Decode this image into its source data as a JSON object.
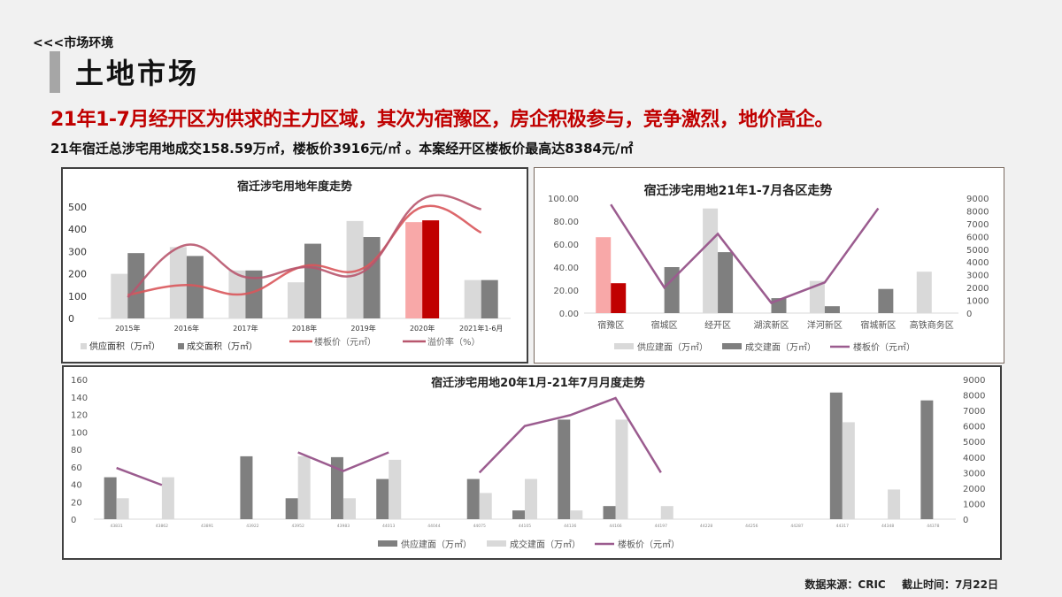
{
  "header": {
    "breadcrumb": "<<<市场环境",
    "title": "土地市场",
    "headline": "21年1-7月经开区为供求的主力区域，其次为宿豫区，房企积极参与，竞争激烈，地价高企。",
    "subline": "21年宿迁总涉宅用地成交158.59万㎡，楼板价3916元/㎡ 。本案经开区楼板价最高达8384元/㎡"
  },
  "footer": {
    "source": "数据来源：CRIC",
    "cutoff": "截止时间：7月22日"
  },
  "colors": {
    "accent_red": "#c00000",
    "accent_pink": "#f8a8a8",
    "supply_gray": "#d9d9d9",
    "deal_gray": "#7f7f7f",
    "price_line_red": "#d9575b",
    "premium_line": "#b8576e",
    "purple_line": "#9b5c8f"
  },
  "chart_data": [
    {
      "type": "bar",
      "title": "宿迁涉宅用地年度走势",
      "categories": [
        "2015年",
        "2016年",
        "2017年",
        "2018年",
        "2019年",
        "2020年",
        "2021年1-6月"
      ],
      "series": [
        {
          "name": "供应面积（万㎡）",
          "kind": "bar",
          "values": [
            200,
            320,
            215,
            162,
            437,
            432,
            172
          ]
        },
        {
          "name": "成交面积（万㎡）",
          "kind": "bar",
          "values": [
            293,
            280,
            215,
            335,
            365,
            440,
            172
          ]
        },
        {
          "name": "楼板价（元㎡）",
          "kind": "smooth-line",
          "values": [
            105,
            150,
            110,
            235,
            225,
            500,
            385
          ]
        },
        {
          "name": "溢价率（%）",
          "kind": "smooth-line",
          "values": [
            95,
            330,
            185,
            230,
            210,
            535,
            490
          ]
        }
      ],
      "highlight_category": "2020年",
      "yticks": [
        "0",
        "100",
        "200",
        "300",
        "400",
        "500"
      ],
      "ylim": [
        0,
        500
      ],
      "legend": [
        "供应面积（万㎡）",
        "成交面积（万㎡）",
        "楼板价（元㎡）",
        "溢价率（%）"
      ],
      "legend_position": "bottom",
      "grid": false
    },
    {
      "type": "bar",
      "title": "宿迁涉宅用地21年1-7月各区走势",
      "categories": [
        "宿豫区",
        "宿城区",
        "经开区",
        "湖滨新区",
        "洋河新区",
        "宿城新区",
        "高铁商务区"
      ],
      "series": [
        {
          "name": "供应建面（万㎡）",
          "kind": "bar",
          "axis": "left",
          "values": [
            66,
            0,
            91,
            0,
            28,
            0,
            36
          ]
        },
        {
          "name": "成交建面（万㎡）",
          "kind": "bar",
          "axis": "left",
          "values": [
            26,
            40,
            53,
            13,
            6,
            21,
            0
          ]
        },
        {
          "name": "楼板价（元㎡）",
          "kind": "line",
          "axis": "right",
          "values": [
            8500,
            2000,
            6200,
            800,
            2400,
            8200,
            null
          ]
        }
      ],
      "highlight_category": "宿豫区",
      "yticks_left": [
        "0.00",
        "20.00",
        "40.00",
        "60.00",
        "80.00",
        "100.00"
      ],
      "yticks_right": [
        "0",
        "1000",
        "2000",
        "3000",
        "4000",
        "5000",
        "6000",
        "7000",
        "8000",
        "9000"
      ],
      "ylim_left": [
        0,
        100
      ],
      "ylim_right": [
        0,
        9000
      ],
      "legend": [
        "供应建面（万㎡）",
        "成交建面（万㎡）",
        "楼板价（元㎡）"
      ],
      "legend_position": "bottom",
      "grid": false
    },
    {
      "type": "bar",
      "title": "宿迁涉宅用地20年1月-21年7月月度走势",
      "categories": [
        "43831",
        "43862",
        "43891",
        "43922",
        "43952",
        "43983",
        "44013",
        "44044",
        "44075",
        "44105",
        "44136",
        "44166",
        "44197",
        "44228",
        "44256",
        "44287",
        "44317",
        "44348",
        "44378"
      ],
      "series": [
        {
          "name": "供应建面（万㎡）",
          "kind": "bar",
          "axis": "left",
          "values": [
            48,
            0,
            0,
            72,
            24,
            71,
            46,
            0,
            46,
            10,
            114,
            15,
            0,
            0,
            0,
            0,
            145,
            0,
            136
          ]
        },
        {
          "name": "成交建面（万㎡）",
          "kind": "bar",
          "axis": "left",
          "values": [
            24,
            48,
            0,
            0,
            72,
            24,
            68,
            0,
            30,
            46,
            10,
            114,
            15,
            0,
            0,
            0,
            111,
            34,
            0
          ]
        },
        {
          "name": "楼板价（元㎡）",
          "kind": "line",
          "axis": "right",
          "values": [
            3300,
            2200,
            null,
            null,
            4300,
            3100,
            4300,
            null,
            3000,
            6000,
            6700,
            7800,
            3000,
            null,
            null,
            null,
            null,
            null,
            null
          ]
        }
      ],
      "yticks_left": [
        "0",
        "20",
        "40",
        "60",
        "80",
        "100",
        "120",
        "140",
        "160"
      ],
      "yticks_right": [
        "0",
        "1000",
        "2000",
        "3000",
        "4000",
        "5000",
        "6000",
        "7000",
        "8000",
        "9000"
      ],
      "ylim_left": [
        0,
        160
      ],
      "ylim_right": [
        0,
        9000
      ],
      "legend": [
        "供应建面（万㎡）",
        "成交建面（万㎡）",
        "楼板价（元㎡）"
      ],
      "legend_position": "bottom",
      "grid": false
    }
  ]
}
